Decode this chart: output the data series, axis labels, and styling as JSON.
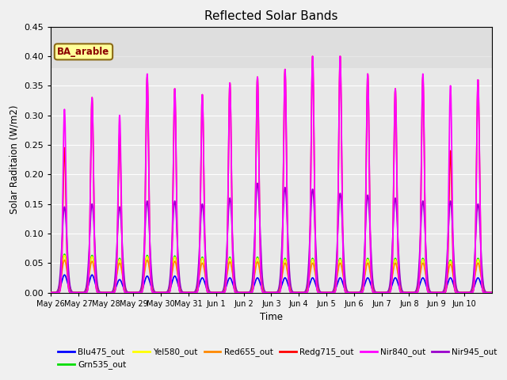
{
  "title": "Reflected Solar Bands",
  "xlabel": "Time",
  "ylabel": "Solar Raditaion (W/m2)",
  "ylim": [
    0,
    0.45
  ],
  "background_color": "#f0f0f0",
  "plot_bg_color": "#e8e8e8",
  "annotation_label": "BA_arable",
  "annotation_color": "#8B0000",
  "annotation_bg": "#ffff99",
  "annotation_border": "#8B6914",
  "series": [
    {
      "name": "Blu475_out",
      "color": "#0000FF"
    },
    {
      "name": "Grn535_out",
      "color": "#00DD00"
    },
    {
      "name": "Yel580_out",
      "color": "#FFFF00"
    },
    {
      "name": "Red655_out",
      "color": "#FF8800"
    },
    {
      "name": "Redg715_out",
      "color": "#FF0000"
    },
    {
      "name": "Nir840_out",
      "color": "#FF00FF"
    },
    {
      "name": "Nir945_out",
      "color": "#9900CC"
    }
  ],
  "days": [
    "May 26",
    "May 27",
    "May 28",
    "May 29",
    "May 30",
    "May 31",
    "Jun 1",
    "Jun 2",
    "Jun 3",
    "Jun 4",
    "Jun 5",
    "Jun 6",
    "Jun 7",
    "Jun 8",
    "Jun 9",
    "Jun 10"
  ],
  "peaks_nir840": [
    0.31,
    0.33,
    0.3,
    0.37,
    0.345,
    0.335,
    0.355,
    0.365,
    0.378,
    0.4,
    0.4,
    0.37,
    0.345,
    0.37,
    0.35,
    0.36
  ],
  "peaks_redg715": [
    0.245,
    0.33,
    0.27,
    0.365,
    0.345,
    0.335,
    0.355,
    0.365,
    0.378,
    0.4,
    0.4,
    0.37,
    0.345,
    0.365,
    0.24,
    0.36
  ],
  "peaks_nir945": [
    0.145,
    0.15,
    0.145,
    0.155,
    0.155,
    0.15,
    0.16,
    0.185,
    0.178,
    0.175,
    0.168,
    0.165,
    0.16,
    0.155,
    0.155,
    0.15
  ],
  "peaks_blu": [
    0.03,
    0.03,
    0.022,
    0.028,
    0.028,
    0.025,
    0.025,
    0.025,
    0.025,
    0.025,
    0.025,
    0.025,
    0.025,
    0.025,
    0.025,
    0.025
  ],
  "peaks_grn": [
    0.065,
    0.063,
    0.058,
    0.063,
    0.062,
    0.06,
    0.06,
    0.06,
    0.058,
    0.058,
    0.058,
    0.058,
    0.058,
    0.058,
    0.055,
    0.058
  ],
  "peaks_yel": [
    0.063,
    0.061,
    0.056,
    0.061,
    0.06,
    0.058,
    0.058,
    0.058,
    0.056,
    0.056,
    0.056,
    0.056,
    0.056,
    0.056,
    0.053,
    0.056
  ],
  "peaks_red655": [
    0.055,
    0.053,
    0.05,
    0.055,
    0.053,
    0.05,
    0.052,
    0.052,
    0.05,
    0.05,
    0.05,
    0.05,
    0.05,
    0.05,
    0.048,
    0.05
  ],
  "sigma_narrow": 0.055,
  "sigma_wide": 0.1,
  "points_per_day": 200
}
